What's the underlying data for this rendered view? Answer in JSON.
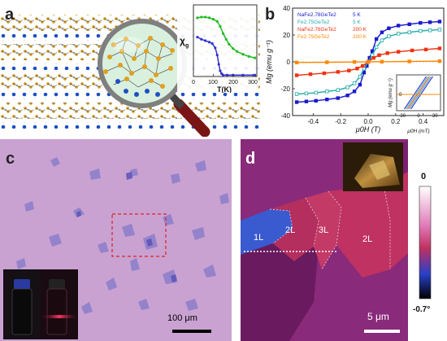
{
  "panels": {
    "a": {
      "label": "a",
      "inset_ylabel": "χ",
      "inset_ysub": "g",
      "inset_xlabel": "T(K)",
      "inset_ticks": [
        "0",
        "100",
        "200",
        "300"
      ]
    },
    "b": {
      "label": "b"
    },
    "c": {
      "label": "c",
      "scalebar": "100 μm"
    },
    "d": {
      "label": "d",
      "regions": [
        "1L",
        "2L",
        "3L",
        "2L"
      ],
      "scalebar": "5 μm",
      "colorbar_max": "0",
      "colorbar_min": "-0.7°"
    }
  },
  "chart_data": [
    {
      "type": "line",
      "panel": "a-inset",
      "xlabel": "T(K)",
      "ylabel": "χg",
      "xlim": [
        0,
        320
      ],
      "x_ticks": [
        0,
        100,
        200,
        300
      ],
      "series": [
        {
          "color": "#22bb22",
          "x": [
            20,
            40,
            60,
            80,
            100,
            120,
            135,
            150,
            165,
            180,
            200,
            220,
            250,
            280,
            310
          ],
          "y": [
            0.82,
            0.83,
            0.83,
            0.82,
            0.8,
            0.77,
            0.7,
            0.6,
            0.52,
            0.45,
            0.39,
            0.35,
            0.31,
            0.28,
            0.26
          ]
        },
        {
          "color": "#3333cc",
          "x": [
            20,
            40,
            60,
            80,
            95,
            110,
            120,
            128,
            135,
            142,
            150,
            170,
            200,
            250,
            310
          ],
          "y": [
            0.55,
            0.52,
            0.5,
            0.48,
            0.46,
            0.4,
            0.3,
            0.17,
            0.08,
            0.04,
            0.02,
            0.02,
            0.02,
            0.02,
            0.02
          ]
        }
      ]
    },
    {
      "type": "line",
      "panel": "b",
      "xlabel": "μ0H (T)",
      "ylabel": "Mg (emu g⁻¹)",
      "xlim": [
        -0.55,
        0.55
      ],
      "ylim": [
        -40,
        40
      ],
      "x_ticks": [
        -0.4,
        -0.2,
        0.0,
        0.2,
        0.4
      ],
      "x_tick_labels": [
        "-0.4",
        "-0.2",
        "0.0",
        "0.2",
        "0.4"
      ],
      "y_ticks": [
        -40,
        -20,
        0,
        20,
        40
      ],
      "legend": [
        {
          "name": "NaFe2.78GeTe2",
          "temp": "5 K",
          "color": "#1a1acc"
        },
        {
          "name": "Fe2.75GeTe2",
          "temp": "5 K",
          "color": "#22aaaa"
        },
        {
          "name": "NaFe2.78GeTe2",
          "temp": "200 K",
          "color": "#ee3311"
        },
        {
          "name": "Fe2.75GeTe2",
          "temp": "200 K",
          "color": "#ff8800"
        }
      ],
      "series": [
        {
          "name": "NaFe2.78GeTe2 5 K",
          "color": "#1a1acc",
          "x": [
            -0.52,
            -0.45,
            -0.38,
            -0.3,
            -0.22,
            -0.15,
            -0.1,
            -0.06,
            -0.03,
            -0.01,
            0.0,
            0.01,
            0.03,
            0.06,
            0.1,
            0.15,
            0.22,
            0.3,
            0.38,
            0.45,
            0.52
          ],
          "y": [
            -30,
            -29.5,
            -29,
            -28,
            -27,
            -25,
            -22,
            -17,
            -8,
            -3,
            0,
            3,
            8,
            17,
            22,
            25,
            27,
            28,
            29,
            29.5,
            30
          ]
        },
        {
          "name": "Fe2.75GeTe2 5 K",
          "color": "#22aaaa",
          "x": [
            -0.52,
            -0.45,
            -0.38,
            -0.3,
            -0.22,
            -0.15,
            -0.1,
            -0.06,
            -0.03,
            0.0,
            0.03,
            0.06,
            0.1,
            0.15,
            0.22,
            0.3,
            0.38,
            0.45,
            0.52
          ],
          "y": [
            -24,
            -23.5,
            -23,
            -22,
            -21,
            -19,
            -16,
            -11,
            -5,
            0,
            5,
            11,
            16,
            19,
            21,
            22,
            23,
            23.5,
            24
          ]
        },
        {
          "name": "NaFe2.78GeTe2 200 K",
          "color": "#ee3311",
          "x": [
            -0.52,
            -0.42,
            -0.32,
            -0.22,
            -0.14,
            -0.08,
            -0.04,
            0.0,
            0.04,
            0.08,
            0.14,
            0.22,
            0.32,
            0.42,
            0.52
          ],
          "y": [
            -10,
            -9.2,
            -8.5,
            -7.5,
            -6.5,
            -5,
            -3,
            0,
            3,
            5,
            6.5,
            7.5,
            8.5,
            9.2,
            10
          ]
        },
        {
          "name": "Fe2.75GeTe2 200 K",
          "color": "#ff8800",
          "x": [
            -0.52,
            -0.3,
            -0.1,
            0.0,
            0.1,
            0.3,
            0.52
          ],
          "y": [
            -0.5,
            -0.3,
            -0.1,
            0,
            0.1,
            0.3,
            0.5
          ]
        }
      ],
      "inset": {
        "xlabel": "μ0H (mT)",
        "ylabel": "Mg (emu g⁻¹)",
        "xlim": [
          -40,
          40
        ],
        "x_ticks": [
          -30,
          0,
          30
        ],
        "y_ticks": [
          0
        ]
      }
    }
  ]
}
